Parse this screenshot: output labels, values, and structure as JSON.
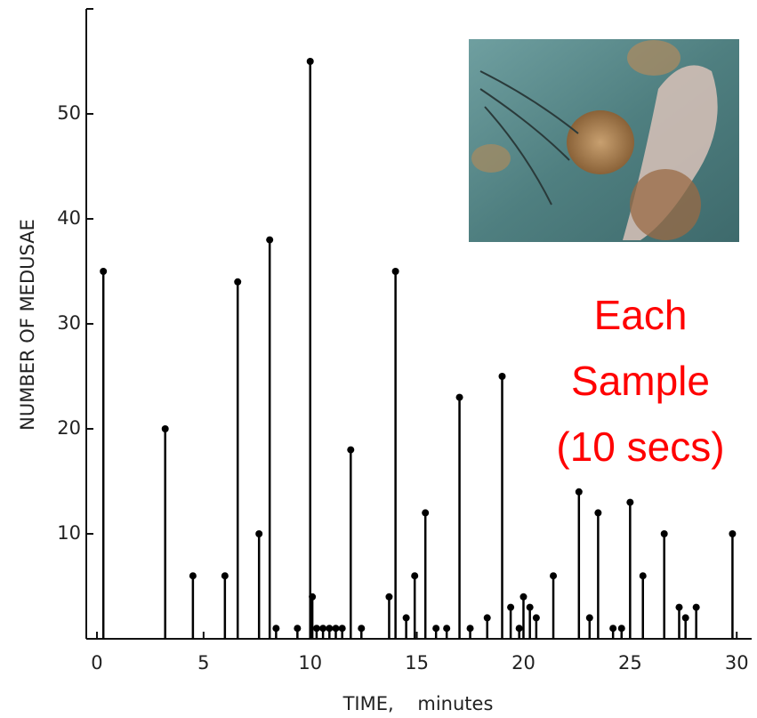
{
  "chart_data": {
    "type": "stem",
    "xlabel": "TIME,    minutes",
    "ylabel": "NUMBER OF MEDUSAE",
    "annotation": [
      "Each",
      "Sample",
      "(10 secs)"
    ],
    "annotation_color": "#ff0000",
    "color": "#000000",
    "x": [
      0.3,
      3.2,
      4.5,
      6.0,
      6.6,
      7.6,
      8.1,
      8.4,
      9.4,
      10.0,
      10.1,
      10.3,
      10.6,
      10.9,
      11.2,
      11.5,
      11.9,
      12.4,
      13.7,
      14.0,
      14.5,
      14.9,
      15.4,
      15.9,
      16.4,
      17.0,
      17.5,
      18.3,
      19.0,
      19.4,
      19.8,
      20.0,
      20.3,
      20.6,
      21.4,
      22.6,
      23.1,
      23.5,
      24.2,
      24.6,
      25.0,
      25.6,
      26.6,
      27.3,
      27.6,
      28.1,
      29.8
    ],
    "values": [
      35,
      20,
      6,
      6,
      34,
      10,
      38,
      1,
      1,
      55,
      4,
      1,
      1,
      1,
      1,
      1,
      18,
      1,
      4,
      35,
      2,
      6,
      12,
      1,
      1,
      23,
      1,
      2,
      25,
      3,
      1,
      4,
      3,
      2,
      6,
      14,
      2,
      12,
      1,
      1,
      13,
      6,
      10,
      3,
      2,
      3,
      10
    ],
    "xlim": [
      -0.5,
      30.7
    ],
    "ylim": [
      0,
      60
    ],
    "xticks": [
      0,
      5,
      10,
      15,
      20,
      25,
      30
    ],
    "yticks": [
      10,
      20,
      30,
      40,
      50
    ]
  }
}
